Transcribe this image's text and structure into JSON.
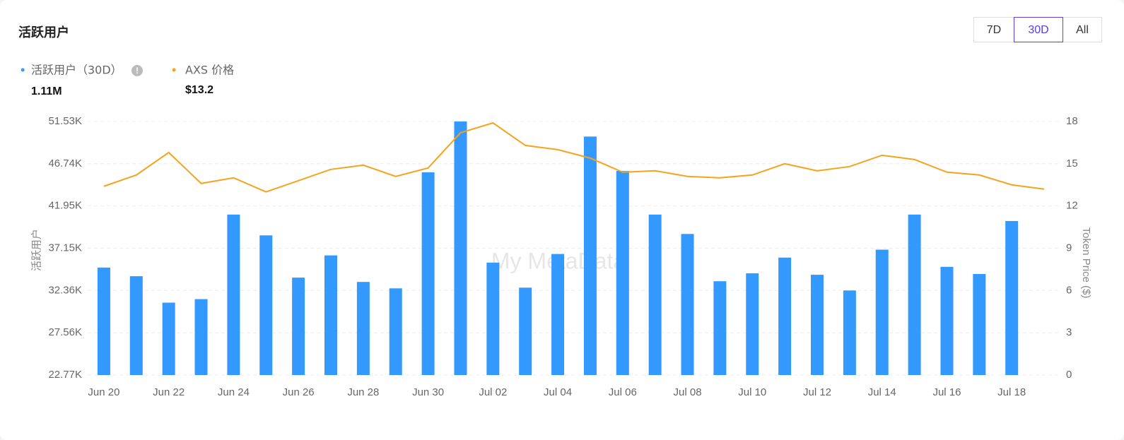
{
  "header": {
    "title": "活跃用户",
    "range_buttons": [
      "7D",
      "30D",
      "All"
    ],
    "active_button": 1
  },
  "summary": [
    "1.11M",
    "$13.2"
  ],
  "watermark": "My MetaData",
  "chart_data": {
    "type": "bar_line",
    "y_label": "活跃用户",
    "y2_label": "Token Price ($)",
    "categories": [
      "Jun 20",
      null,
      "Jun 22",
      null,
      "Jun 24",
      null,
      "Jun 26",
      null,
      "Jun 28",
      null,
      "Jun 30",
      null,
      "Jul 02",
      null,
      "Jul 04",
      null,
      "Jul 06",
      null,
      "Jul 08",
      null,
      "Jul 10",
      null,
      "Jul 12",
      null,
      "Jul 14",
      null,
      "Jul 16",
      null,
      "Jul 18",
      null
    ],
    "series": [
      {
        "name": "活跃用户（30D）",
        "type": "bar",
        "color": "#3399ff",
        "values": [
          34960,
          33980,
          30980,
          31380,
          40970,
          38610,
          33820,
          36340,
          33330,
          32600,
          45760,
          51530,
          35520,
          32680,
          36500,
          49820,
          45920,
          40970,
          38770,
          33410,
          34310,
          36090,
          34140,
          32360,
          36990,
          40970,
          35040,
          34230,
          40240,
          null
        ]
      },
      {
        "name": "AXS 价格",
        "type": "line",
        "axis": "y2",
        "color": "#f7a21b",
        "values": [
          13.4,
          14.2,
          15.8,
          13.6,
          14.0,
          13.0,
          13.8,
          14.6,
          14.9,
          14.1,
          14.7,
          17.2,
          17.9,
          16.3,
          16.0,
          15.4,
          14.4,
          14.5,
          14.1,
          14.0,
          14.2,
          15.0,
          14.5,
          14.8,
          15.6,
          15.3,
          14.4,
          14.2,
          13.5,
          13.2
        ]
      }
    ],
    "ylim": [
      22770,
      51530
    ],
    "yticks": [
      {
        "value": 22770,
        "label": "22.77K"
      },
      {
        "value": 27560,
        "label": "27.56K"
      },
      {
        "value": 32360,
        "label": "32.36K"
      },
      {
        "value": 37150,
        "label": "37.15K"
      },
      {
        "value": 41950,
        "label": "41.95K"
      },
      {
        "value": 46740,
        "label": "46.74K"
      },
      {
        "value": 51530,
        "label": "51.53K"
      }
    ],
    "y2lim": [
      0,
      18
    ],
    "y2ticks": [
      0,
      3,
      6,
      9,
      12,
      15,
      18
    ],
    "grid": true
  }
}
